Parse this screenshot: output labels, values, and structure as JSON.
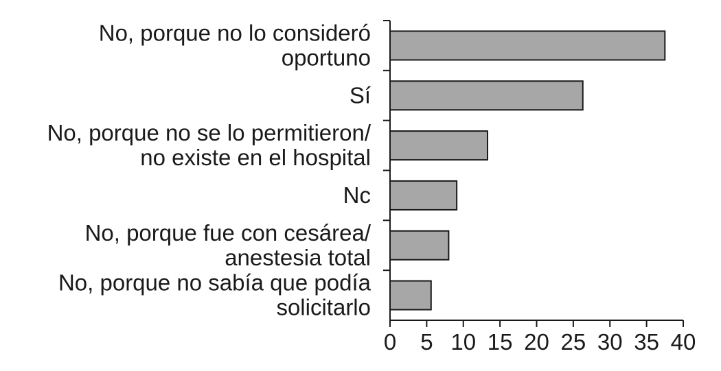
{
  "chart_data": {
    "type": "bar",
    "orientation": "horizontal",
    "categories": [
      [
        "No, porque no lo consideró",
        "oportuno"
      ],
      [
        "Sí"
      ],
      [
        "No, porque no se lo permitieron/",
        "no existe en el hospital"
      ],
      [
        "Nc"
      ],
      [
        "No, porque fue con cesárea/",
        "anestesia total"
      ],
      [
        "No, porque no sabía que podía",
        "solicitarlo"
      ]
    ],
    "values": [
      37.5,
      26.3,
      13.3,
      9.1,
      8.0,
      5.6
    ],
    "xlim": [
      0,
      40
    ],
    "xticks": [
      "0",
      "5",
      "10",
      "15",
      "20",
      "25",
      "30",
      "35",
      "40"
    ],
    "grid": false,
    "title": "",
    "xlabel": "",
    "ylabel": "",
    "colors": {
      "bar_fill": "#a7a7a7",
      "bar_stroke": "#1a1a1a",
      "axis": "#1a1a1a",
      "text": "#1a1a1a"
    }
  }
}
